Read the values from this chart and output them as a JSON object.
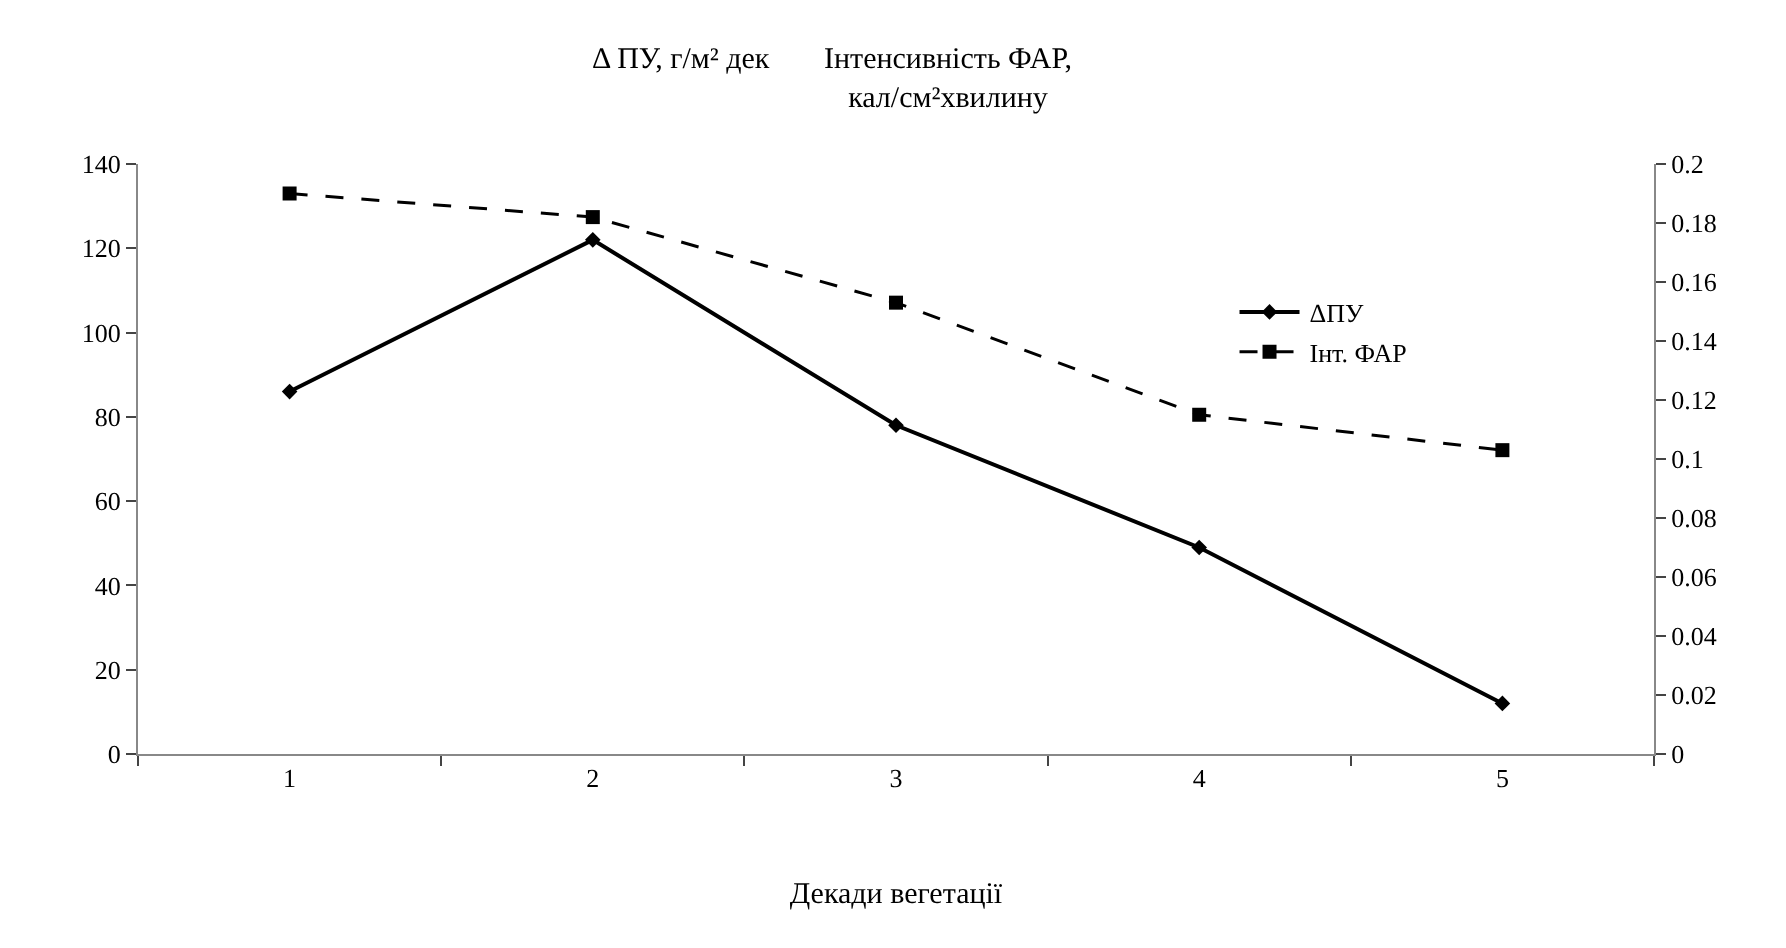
{
  "chart_data": {
    "type": "line",
    "xlabel": "Декади вегетації",
    "ylabel": "Δ ПУ, г/м² дек",
    "y2label": "Інтенсивність ФАР, кал/см²хвилину",
    "categories": [
      "1",
      "2",
      "3",
      "4",
      "5"
    ],
    "series": [
      {
        "name": "ΔПУ",
        "color": "#000000",
        "values": [
          86,
          122,
          78,
          49,
          12
        ],
        "marker": "diamond",
        "line_style": "solid"
      },
      {
        "name": "Інт. ФАР",
        "color": "#000000",
        "values": [
          0.19,
          0.182,
          0.153,
          0.115,
          0.103
        ],
        "axis": "y2",
        "marker": "square",
        "line_style": "dashed"
      }
    ],
    "ylim": [
      0,
      140
    ],
    "yticks": [
      0,
      20,
      40,
      60,
      80,
      100,
      120,
      140
    ],
    "y2lim": [
      0,
      0.2
    ],
    "y2ticks": [
      0,
      0.02,
      0.04,
      0.06,
      0.08,
      0.1,
      0.12,
      0.14,
      0.16,
      0.18,
      0.2
    ],
    "legend": "top right"
  }
}
